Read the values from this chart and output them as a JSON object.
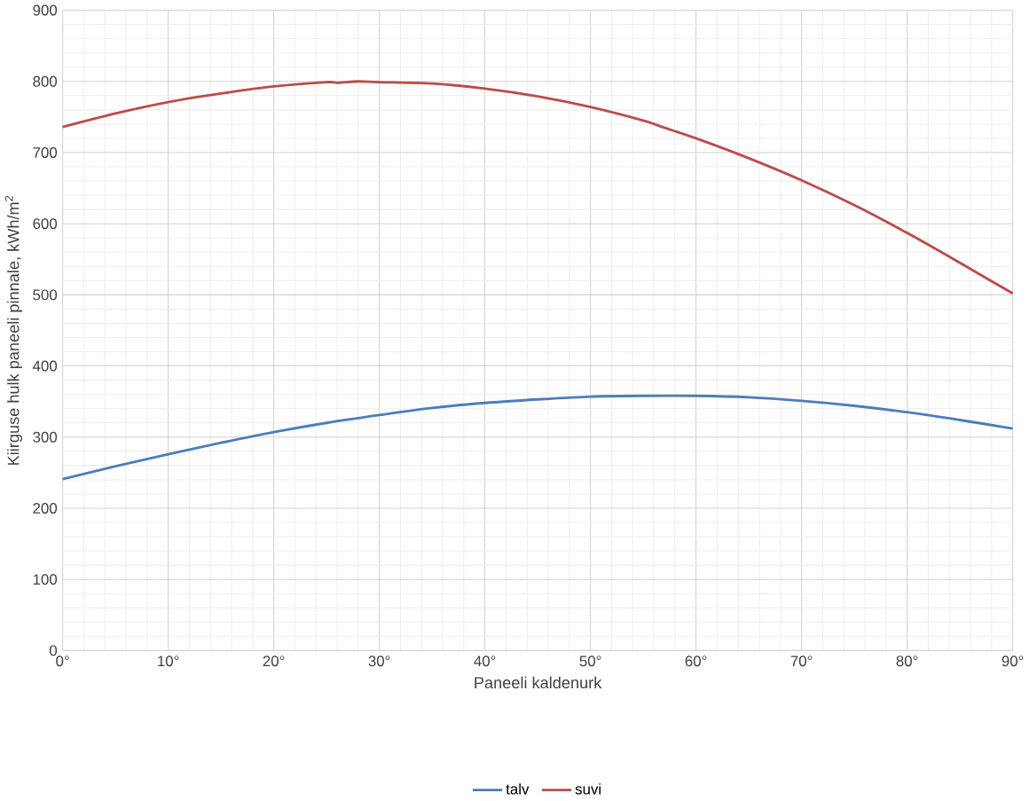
{
  "chart_data": {
    "type": "line",
    "xlabel": "Paneeli kaldenurk",
    "ylabel": "Kiirguse hulk paneeli pinnale, kWh/m$^{2}$",
    "x": [
      0,
      5,
      10,
      15,
      20,
      25,
      30,
      35,
      40,
      45,
      50,
      55,
      60,
      65,
      70,
      75,
      80,
      85,
      90
    ],
    "series": [
      {
        "name": "talv",
        "color": "#4a7ebb",
        "values": [
          241,
          259,
          276,
          292,
          307,
          320,
          331,
          341,
          348,
          353,
          357,
          358,
          358,
          356,
          351,
          344,
          335,
          324,
          312
        ]
      },
      {
        "name": "suvi",
        "color": "#be4b48",
        "x": [
          0,
          5,
          10,
          15,
          20,
          25,
          26,
          28,
          30,
          35,
          40,
          45,
          50,
          55,
          57,
          60,
          65,
          70,
          75,
          80,
          85,
          90
        ],
        "values": [
          736,
          755,
          771,
          783,
          793,
          799,
          798,
          800,
          799,
          797,
          790,
          779,
          764,
          745,
          735,
          720,
          692,
          661,
          626,
          587,
          545,
          502
        ]
      }
    ],
    "xlim": [
      0,
      90
    ],
    "ylim": [
      0,
      900
    ],
    "xticks": [
      {
        "value": 0,
        "label": "0°"
      },
      {
        "value": 10,
        "label": "10°"
      },
      {
        "value": 20,
        "label": "20°"
      },
      {
        "value": 30,
        "label": "30°"
      },
      {
        "value": 40,
        "label": "40°"
      },
      {
        "value": 50,
        "label": "50°"
      },
      {
        "value": 60,
        "label": "60°"
      },
      {
        "value": 70,
        "label": "70°"
      },
      {
        "value": 80,
        "label": "80°"
      },
      {
        "value": 90,
        "label": "90°"
      }
    ],
    "yticks": [
      0,
      100,
      200,
      300,
      400,
      500,
      600,
      700,
      800,
      900
    ],
    "grid": true,
    "legend": "bottom",
    "marker": "none",
    "line_style": "solid"
  }
}
